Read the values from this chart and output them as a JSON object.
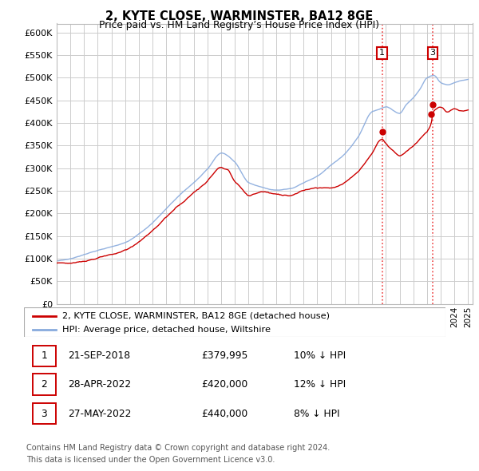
{
  "title": "2, KYTE CLOSE, WARMINSTER, BA12 8GE",
  "subtitle": "Price paid vs. HM Land Registry’s House Price Index (HPI)",
  "ylim": [
    0,
    620000
  ],
  "yticks": [
    0,
    50000,
    100000,
    150000,
    200000,
    250000,
    300000,
    350000,
    400000,
    450000,
    500000,
    550000,
    600000
  ],
  "sale_color": "#cc0000",
  "hpi_color": "#88aadd",
  "sale_label": "2, KYTE CLOSE, WARMINSTER, BA12 8GE (detached house)",
  "hpi_label": "HPI: Average price, detached house, Wiltshire",
  "transactions": [
    {
      "id": 1,
      "date": "21-SEP-2018",
      "price": 379995,
      "price_str": "£379,995",
      "pct": "10%",
      "dir": "↓",
      "x": 2018.72
    },
    {
      "id": 2,
      "date": "28-APR-2022",
      "price": 420000,
      "price_str": "£420,000",
      "pct": "12%",
      "dir": "↓",
      "x": 2022.32
    },
    {
      "id": 3,
      "date": "27-MAY-2022",
      "price": 440000,
      "price_str": "£440,000",
      "pct": "8%",
      "dir": "↓",
      "x": 2022.41
    }
  ],
  "footnote1": "Contains HM Land Registry data © Crown copyright and database right 2024.",
  "footnote2": "This data is licensed under the Open Government Licence v3.0.",
  "background_color": "#ffffff",
  "grid_color": "#cccccc",
  "vline_color": "#ee4444"
}
